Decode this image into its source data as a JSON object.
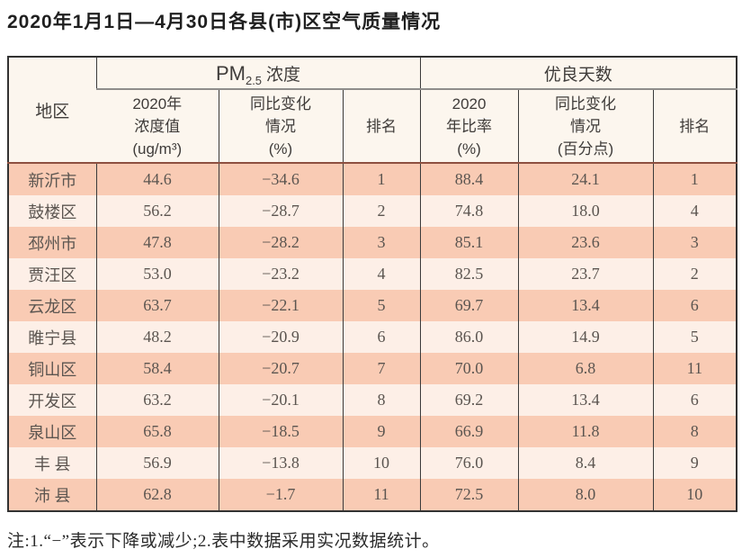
{
  "title": "2020年1月1日—4月30日各县(市)区空气质量情况",
  "table": {
    "region_header": "地区",
    "pm_group": {
      "prefix": "PM",
      "sub": "2.5",
      "suffix": "浓度"
    },
    "days_group_label": "优良天数",
    "columns": [
      "2020年\n浓度值\n(ug/m³)",
      "同比变化\n情况\n(%)",
      "排名",
      "2020\n年比率\n(%)",
      "同比变化\n情况\n(百分点)",
      "排名"
    ],
    "rows": [
      [
        "新沂市",
        "44.6",
        "−34.6",
        "1",
        "88.4",
        "24.1",
        "1"
      ],
      [
        "鼓楼区",
        "56.2",
        "−28.7",
        "2",
        "74.8",
        "18.0",
        "4"
      ],
      [
        "邳州市",
        "47.8",
        "−28.2",
        "3",
        "85.1",
        "23.6",
        "3"
      ],
      [
        "贾汪区",
        "53.0",
        "−23.2",
        "4",
        "82.5",
        "23.7",
        "2"
      ],
      [
        "云龙区",
        "63.7",
        "−22.1",
        "5",
        "69.7",
        "13.4",
        "6"
      ],
      [
        "睢宁县",
        "48.2",
        "−20.9",
        "6",
        "86.0",
        "14.9",
        "5"
      ],
      [
        "铜山区",
        "58.4",
        "−20.7",
        "7",
        "70.0",
        "6.8",
        "11"
      ],
      [
        "开发区",
        "63.2",
        "−20.1",
        "8",
        "69.2",
        "13.4",
        "6"
      ],
      [
        "泉山区",
        "65.8",
        "−18.5",
        "9",
        "66.9",
        "11.8",
        "8"
      ],
      [
        "丰 县",
        "56.9",
        "−13.8",
        "10",
        "76.0",
        "8.4",
        "9"
      ],
      [
        "沛 县",
        "62.8",
        "−1.7",
        "11",
        "72.5",
        "8.0",
        "10"
      ]
    ]
  },
  "note": "注:1.“−”表示下降或减少;2.表中数据采用实况数据统计。",
  "colors": {
    "row_odd": "#f9cbb4",
    "row_even": "#fdefe7",
    "header_bg": "#fcf6ee",
    "border_dark": "#323232",
    "group_divider_gray": "#8f8d8b",
    "header_bottom_brown": "#8e5040"
  }
}
